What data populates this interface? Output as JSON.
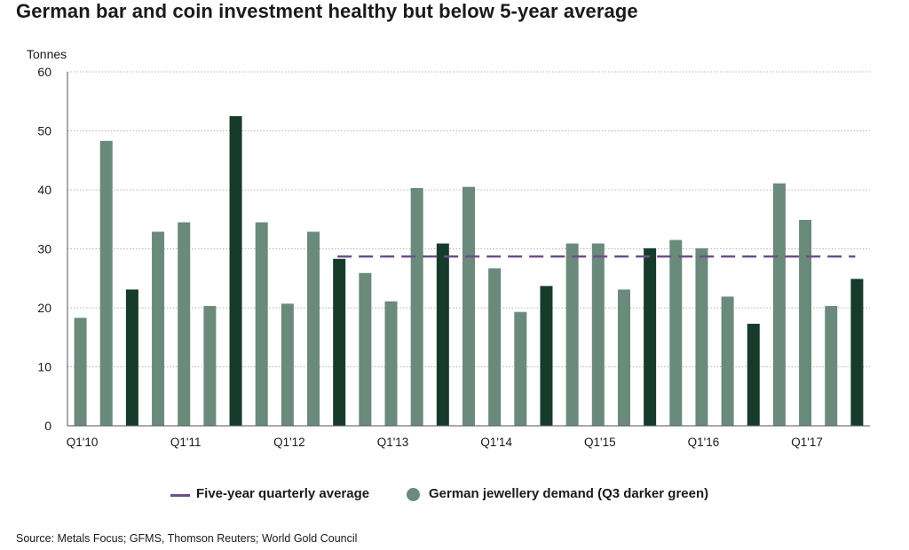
{
  "title": "German bar and coin investment healthy but below 5-year average",
  "source": "Source: Metals Focus; GFMS, Thomson Reuters; World Gold Council",
  "legend": {
    "line_label": "Five-year quarterly average",
    "dot_label": "German jewellery demand (Q3 darker green)"
  },
  "colors": {
    "bar": "#6a8a7b",
    "bar_q3": "#173b2b",
    "average_line": "#6e4f8c",
    "grid": "#b4b4b4",
    "axis": "#555555"
  },
  "chart_data": {
    "type": "bar",
    "ylabel": "Tonnes",
    "ylim": [
      0,
      60
    ],
    "yticks": [
      0,
      10,
      20,
      30,
      40,
      50,
      60
    ],
    "categories": [
      "Q1'10",
      "Q2'10",
      "Q3'10",
      "Q4'10",
      "Q1'11",
      "Q2'11",
      "Q3'11",
      "Q4'11",
      "Q1'12",
      "Q2'12",
      "Q3'12",
      "Q4'12",
      "Q1'13",
      "Q2'13",
      "Q3'13",
      "Q4'13",
      "Q1'14",
      "Q2'14",
      "Q3'14",
      "Q4'14",
      "Q1'15",
      "Q2'15",
      "Q3'15",
      "Q4'15",
      "Q1'16",
      "Q2'16",
      "Q3'16",
      "Q4'16",
      "Q1'17",
      "Q2'17",
      "Q3'17"
    ],
    "tick_labels": [
      "Q1'10",
      "Q1'11",
      "Q1'12",
      "Q1'13",
      "Q1'14",
      "Q1'15",
      "Q1'16",
      "Q1'17"
    ],
    "values": [
      18.3,
      48.3,
      23.1,
      32.9,
      34.5,
      20.3,
      52.5,
      34.5,
      20.7,
      32.9,
      28.3,
      25.9,
      21.1,
      40.3,
      30.9,
      40.5,
      26.7,
      19.3,
      23.7,
      30.9,
      30.9,
      23.1,
      30.1,
      31.5,
      30.1,
      21.9,
      17.3,
      41.1,
      34.9,
      20.3,
      24.9
    ],
    "series": [
      {
        "name": "Five-year quarterly average",
        "type": "line",
        "value": 28.7,
        "start": "Q3'12",
        "end": "Q3'17"
      },
      {
        "name": "German jewellery demand (Q3 darker green)",
        "type": "bar"
      }
    ],
    "highlight_quarter": "Q3",
    "grid": true
  }
}
